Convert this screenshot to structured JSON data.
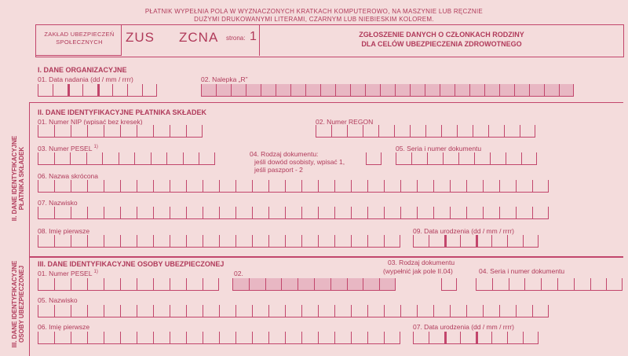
{
  "header": {
    "instruction_line1": "PŁATNIK WYPEŁNIA POLA W WYZNACZONYCH KRATKACH KOMPUTEROWO, NA MASZYNIE LUB RĘCZNIE",
    "instruction_line2": "DUŻYMI DRUKOWANYMI LITERAMI, CZARNYM LUB NIEBIESKIM KOLOREM.",
    "org_line1": "ZAKŁAD UBEZPIECZEŃ",
    "org_line2": "SPOŁECZNYCH",
    "zus": "ZUS",
    "form_code": "ZCNA",
    "page_label": "strona:",
    "page_number": "1",
    "title_line1": "ZGŁOSZENIE DANYCH O CZŁONKACH RODZINY",
    "title_line2": "DLA CELÓW UBEZPIECZENIA ZDROWOTNEGO"
  },
  "section1": {
    "title": "I. DANE ORGANIZACYJNE",
    "field01": "01. Data nadania (dd / mm / rrrr)",
    "field02": "02. Nalepka „R”"
  },
  "section2": {
    "side_label_line1": "II. DANE IDENTYFIKACYJNE",
    "side_label_line2": "PŁATNIKA SKŁADEK",
    "title": "II. DANE IDENTYFIKACYJNE PŁATNIKA SKŁADEK",
    "field01": "01. Numer NIP (wpisać bez kresek)",
    "field02": "02. Numer REGON",
    "field03": "03. Numer PESEL",
    "field03_sup": "1)",
    "field04_line1": "04. Rodzaj dokumentu:",
    "field04_line2": "jeśli dowód osobisty, wpisać 1,",
    "field04_line3": "jeśli paszport - 2",
    "field05": "05. Seria i numer dokumentu",
    "field06": "06. Nazwa skrócona",
    "field07": "07. Nazwisko",
    "field08": "08. Imię pierwsze",
    "field09": "09. Data urodzenia (dd / mm / rrrr)"
  },
  "section3": {
    "side_label_line1": "III. DANE IDENTYFIKACYJNE",
    "side_label_line2": "OSOBY UBEZPIECZONEJ",
    "title": "III. DANE IDENTYFIKACYJNE OSOBY UBEZPIECZONEJ",
    "field01": "01. Numer PESEL",
    "field01_sup": "1)",
    "field02": "02.",
    "field03_line1": "03. Rodzaj dokumentu",
    "field03_line2": "(wypełnić jak pole II.04)",
    "field04": "04. Seria i numer dokumentu",
    "field05": "05. Nazwisko",
    "field06": "06. Imię pierwsze",
    "field07": "07. Data urodzenia (dd / mm / rrrr)"
  },
  "colors": {
    "background": "#f4dcdc",
    "ink": "#b03a5a",
    "shade": "#e8b7c3"
  }
}
